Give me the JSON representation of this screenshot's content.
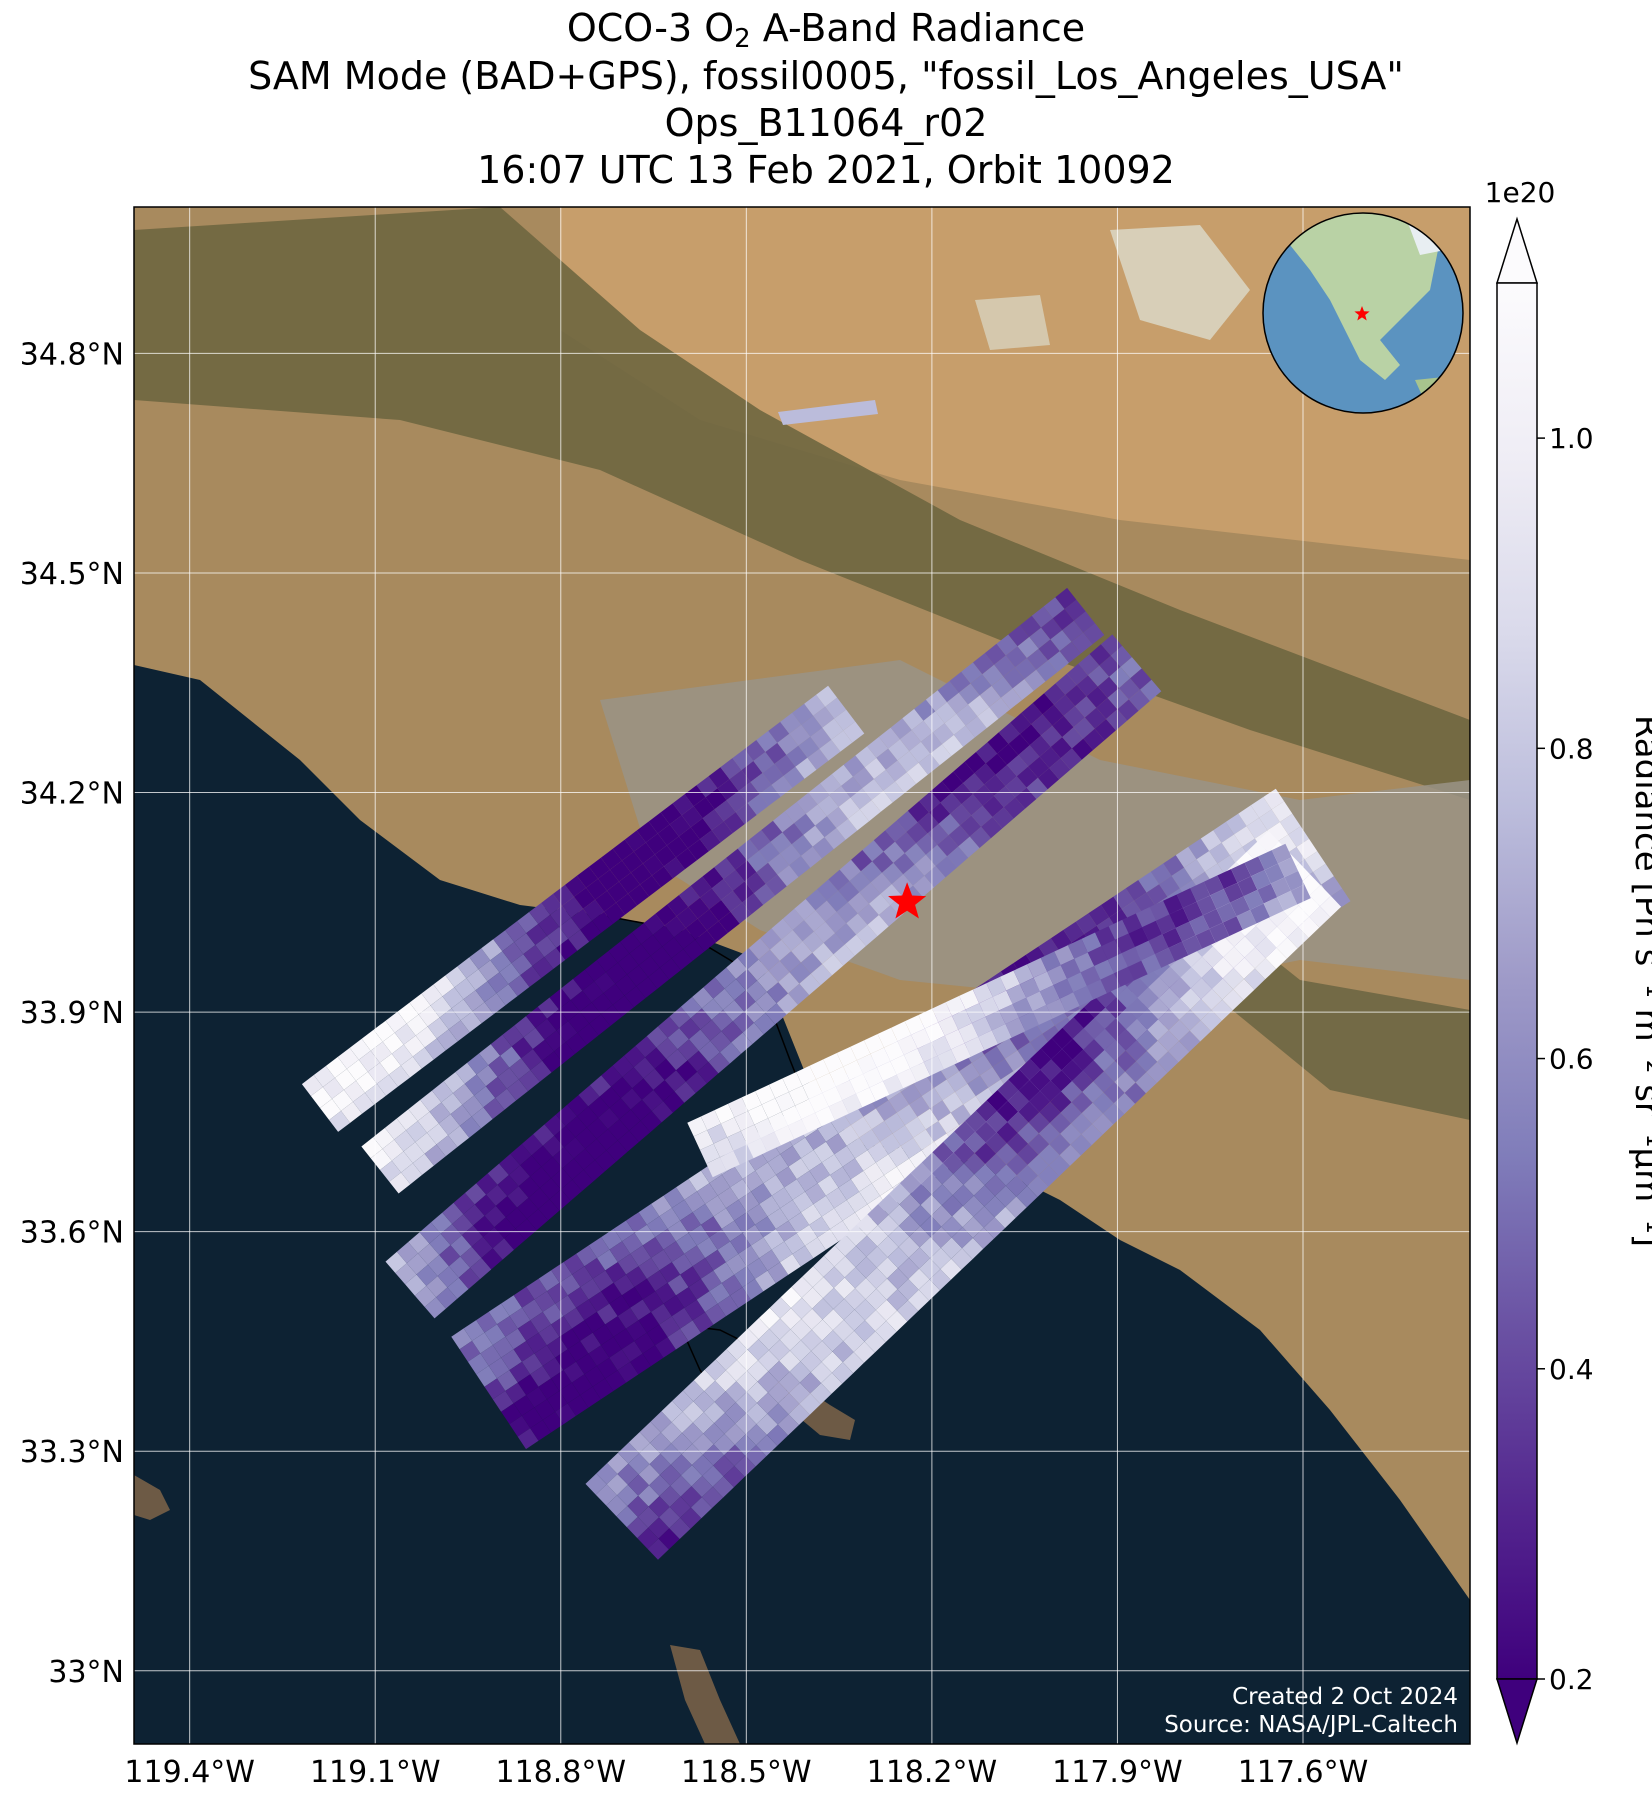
{
  "title": {
    "line1_prefix": "OCO-3 O",
    "line1_sub": "2",
    "line1_suffix": " A-Band Radiance",
    "line2": "SAM Mode (BAD+GPS), fossil0005, \"fossil_Los_Angeles_USA\"",
    "line3": "Ops_B11064_r02",
    "line4": "16:07 UTC 13 Feb 2021, Orbit 10092"
  },
  "map": {
    "lat_range": [
      32.9,
      35.0
    ],
    "lon_range": [
      -119.49,
      -117.33
    ],
    "lat_ticks": [
      {
        "value": 34.8,
        "label": "34.8°N"
      },
      {
        "value": 34.5,
        "label": "34.5°N"
      },
      {
        "value": 34.2,
        "label": "34.2°N"
      },
      {
        "value": 33.9,
        "label": "33.9°N"
      },
      {
        "value": 33.6,
        "label": "33.6°N"
      },
      {
        "value": 33.3,
        "label": "33.3°N"
      },
      {
        "value": 33.0,
        "label": "33°N"
      }
    ],
    "lon_ticks": [
      {
        "value": -119.4,
        "label": "119.4°W"
      },
      {
        "value": -119.1,
        "label": "119.1°W"
      },
      {
        "value": -118.8,
        "label": "118.8°W"
      },
      {
        "value": -118.5,
        "label": "118.5°W"
      },
      {
        "value": -118.2,
        "label": "118.2°W"
      },
      {
        "value": -117.9,
        "label": "117.9°W"
      },
      {
        "value": -117.6,
        "label": "117.6°W"
      }
    ],
    "target_marker": {
      "lon": -118.24,
      "lat": 34.05,
      "color": "#ff0000"
    },
    "colors": {
      "land": "#a88a5e",
      "ocean": "#0d2233",
      "mountain": "#5e5a36",
      "urban": "#9a9386",
      "gridline": "#ffffff"
    }
  },
  "colorbar": {
    "label": "Radiance [Ph s⁻¹ m⁻² sr⁻¹μm⁻¹]",
    "exponent": "1e20",
    "ticks": [
      {
        "value": 0.2,
        "label": "0.2"
      },
      {
        "value": 0.4,
        "label": "0.4"
      },
      {
        "value": 0.6,
        "label": "0.6"
      },
      {
        "value": 0.8,
        "label": "0.8"
      },
      {
        "value": 1.0,
        "label": "1.0"
      }
    ],
    "range": [
      0.2,
      1.1
    ],
    "colormap_stops": [
      "#3f007d",
      "#54278f",
      "#6a51a3",
      "#807dba",
      "#9e9ac8",
      "#bcbddc",
      "#dadaeb",
      "#efedf5",
      "#fcfbfd"
    ]
  },
  "credits": {
    "line1": "Created 2 Oct 2024",
    "line2": "Source: NASA/JPL-Caltech"
  }
}
